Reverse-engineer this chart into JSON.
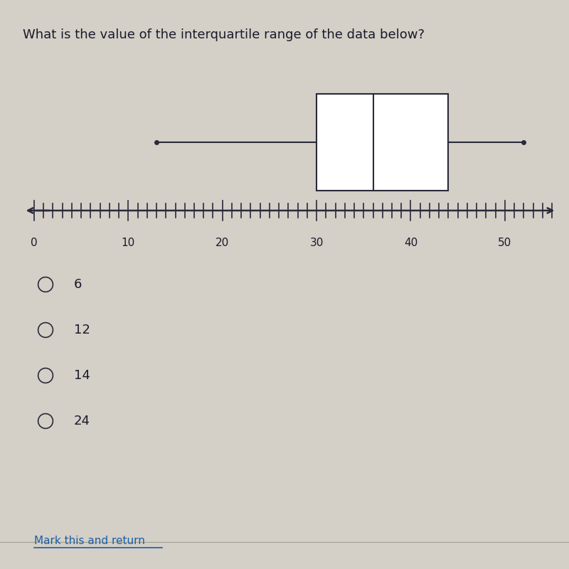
{
  "title": "What is the value of the interquartile range of the data below?",
  "title_fontsize": 13,
  "whisker_min": 13,
  "Q1": 30,
  "median": 36,
  "Q3": 44,
  "whisker_max": 52,
  "axis_min": 0,
  "axis_max": 55,
  "axis_ticks": [
    0,
    10,
    20,
    30,
    40,
    50
  ],
  "choices": [
    "6",
    "12",
    "14",
    "24"
  ],
  "bg_color": "#d4cfc7",
  "box_color": "#2a2a3a",
  "line_color": "#2a2a3a",
  "axis_color": "#2a2a3a",
  "text_color": "#1a1a2a",
  "choice_color": "#1a1a2a",
  "footer_text": "Mark this and return",
  "footer_color": "#1a5fa8"
}
